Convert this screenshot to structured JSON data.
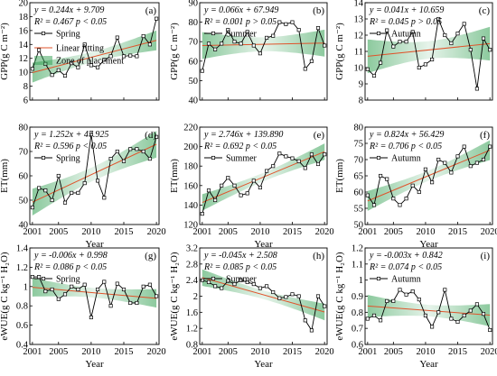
{
  "figure": {
    "x_label": "Year"
  },
  "chart_data": [
    {
      "type": "line",
      "panel": "(a)",
      "season": "Spring",
      "variable": "GPP",
      "x": [
        2001,
        2002,
        2003,
        2004,
        2005,
        2006,
        2007,
        2008,
        2009,
        2010,
        2011,
        2012,
        2013,
        2014,
        2015,
        2016,
        2017,
        2018,
        2019,
        2020
      ],
      "y": [
        10.5,
        13.2,
        11.2,
        9.6,
        10.3,
        9.5,
        11.3,
        10.7,
        14.0,
        11.0,
        10.7,
        11.8,
        12.3,
        15.0,
        12.3,
        12.4,
        12.3,
        15.2,
        14.0,
        17.7
      ],
      "fit": {
        "slope": 0.244,
        "intercept": 9.709
      },
      "equation": "y = 0.244x + 9.709",
      "r2_text": "R² = 0.467 p < 0.05",
      "ylabel": "GPP(g C m⁻²)",
      "ylim": [
        6,
        20
      ],
      "yticks": [
        6,
        8,
        10,
        12,
        14,
        16,
        18,
        20
      ],
      "legend": [
        "Spring",
        "Linear fitting",
        "Zone of placement"
      ],
      "show_x_ticklabels": false
    },
    {
      "type": "line",
      "panel": "(b)",
      "season": "Summer",
      "variable": "GPP",
      "x": [
        2001,
        2002,
        2003,
        2004,
        2005,
        2006,
        2007,
        2008,
        2009,
        2010,
        2011,
        2012,
        2013,
        2014,
        2015,
        2016,
        2017,
        2018,
        2019,
        2020
      ],
      "y": [
        55,
        69,
        66,
        69,
        76,
        70,
        69,
        75,
        68,
        64,
        72,
        73,
        80,
        79,
        80,
        76,
        56,
        60,
        77,
        68
      ],
      "fit": {
        "slope": 0.066,
        "intercept": 67.949
      },
      "equation": "y = 0.066x + 67.949",
      "r2_text": "R² = 0.001 p > 0.05",
      "ylabel": "GPP(g C m⁻²)",
      "ylim": [
        40,
        90
      ],
      "yticks": [
        40,
        50,
        60,
        70,
        80,
        90
      ],
      "legend": [
        "Summer"
      ],
      "show_x_ticklabels": false
    },
    {
      "type": "line",
      "panel": "(c)",
      "season": "Autumn",
      "variable": "GPP",
      "x": [
        2001,
        2002,
        2003,
        2004,
        2005,
        2006,
        2007,
        2008,
        2009,
        2010,
        2011,
        2012,
        2013,
        2014,
        2015,
        2016,
        2017,
        2018,
        2019,
        2020
      ],
      "y": [
        9.9,
        9.5,
        10.3,
        12.3,
        11.3,
        11.6,
        11.6,
        12.2,
        10.0,
        10.2,
        10.5,
        13.0,
        12.0,
        11.5,
        12.1,
        12.7,
        11.1,
        8.7,
        11.8,
        11.1
      ],
      "fit": {
        "slope": 0.041,
        "intercept": 10.659
      },
      "equation": "y = 0.041x + 10.659",
      "r2_text": "R² = 0.045 p > 0.05",
      "ylabel": "GPP(g C m⁻²)",
      "ylim": [
        8,
        14
      ],
      "yticks": [
        8,
        9,
        10,
        11,
        12,
        13,
        14
      ],
      "legend": [
        "Autumn"
      ],
      "show_x_ticklabels": false
    },
    {
      "type": "line",
      "panel": "(d)",
      "season": "Spring",
      "variable": "ET",
      "x": [
        2001,
        2002,
        2003,
        2004,
        2005,
        2006,
        2007,
        2008,
        2009,
        2010,
        2011,
        2012,
        2013,
        2014,
        2015,
        2016,
        2017,
        2018,
        2019,
        2020
      ],
      "y": [
        47,
        55,
        54,
        50,
        60,
        49,
        53,
        53,
        57,
        77,
        58,
        51,
        67,
        70,
        66,
        71,
        71,
        70,
        67,
        76
      ],
      "fit": {
        "slope": 1.252,
        "intercept": 47.925
      },
      "equation": "y = 1.252x + 47.925",
      "r2_text": "R² = 0.596 p < 0.05",
      "ylabel": "ET(mm)",
      "ylim": [
        40,
        80
      ],
      "yticks": [
        40,
        50,
        60,
        70,
        80
      ],
      "legend": [
        "Spring"
      ],
      "show_x_ticklabels": true
    },
    {
      "type": "line",
      "panel": "(e)",
      "season": "Summer",
      "variable": "ET",
      "x": [
        2001,
        2002,
        2003,
        2004,
        2005,
        2006,
        2007,
        2008,
        2009,
        2010,
        2011,
        2012,
        2013,
        2014,
        2015,
        2016,
        2017,
        2018,
        2019,
        2020
      ],
      "y": [
        131,
        155,
        145,
        160,
        168,
        160,
        150,
        152,
        165,
        158,
        175,
        180,
        193,
        190,
        188,
        185,
        178,
        192,
        182,
        192
      ],
      "fit": {
        "slope": 2.746,
        "intercept": 139.89
      },
      "equation": "y = 2.746x + 139.890",
      "r2_text": "R² = 0.692 p < 0.05",
      "ylabel": "ET(mm)",
      "ylim": [
        120,
        220
      ],
      "yticks": [
        120,
        140,
        160,
        180,
        200,
        220
      ],
      "legend": [
        "Summer"
      ],
      "show_x_ticklabels": true
    },
    {
      "type": "line",
      "panel": "(f)",
      "season": "Autumn",
      "variable": "ET",
      "x": [
        2001,
        2002,
        2003,
        2004,
        2005,
        2006,
        2007,
        2008,
        2009,
        2010,
        2011,
        2012,
        2013,
        2014,
        2015,
        2016,
        2017,
        2018,
        2019,
        2020
      ],
      "y": [
        59,
        56,
        65,
        64,
        58,
        56,
        58,
        62,
        60,
        67,
        63,
        70,
        69,
        66,
        71,
        74,
        68,
        69,
        70,
        74
      ],
      "fit": {
        "slope": 0.824,
        "intercept": 56.429
      },
      "equation": "y = 0.824x + 56.429",
      "r2_text": "R² = 0.706 p < 0.05",
      "ylabel": "ET(mm)",
      "ylim": [
        50,
        80
      ],
      "yticks": [
        50,
        55,
        60,
        65,
        70,
        75,
        80
      ],
      "legend": [
        "Autumn"
      ],
      "show_x_ticklabels": true
    },
    {
      "type": "line",
      "panel": "(g)",
      "season": "Spring",
      "variable": "eWUE",
      "x": [
        2001,
        2002,
        2003,
        2004,
        2005,
        2006,
        2007,
        2008,
        2009,
        2010,
        2011,
        2012,
        2013,
        2014,
        2015,
        2016,
        2017,
        2018,
        2019,
        2020
      ],
      "y": [
        1.1,
        1.1,
        0.95,
        0.97,
        0.87,
        0.92,
        1.0,
        0.97,
        1.02,
        0.68,
        0.97,
        1.05,
        0.8,
        1.03,
        0.97,
        0.83,
        0.83,
        1.0,
        1.02,
        0.9
      ],
      "fit": {
        "slope": -0.006,
        "intercept": 0.998
      },
      "equation": "y = -0.006x + 0.998",
      "r2_text": "R² = 0.086 p < 0.05",
      "ylabel": "eWUE(g C kg⁻¹ H₂O)",
      "ylim": [
        0.4,
        1.4
      ],
      "yticks": [
        0.4,
        0.6,
        0.8,
        1.0,
        1.2,
        1.4
      ],
      "legend": [
        "Spring"
      ],
      "show_x_ticklabels": true
    },
    {
      "type": "line",
      "panel": "(h)",
      "season": "Summer",
      "variable": "eWUE",
      "x": [
        2001,
        2002,
        2003,
        2004,
        2005,
        2006,
        2007,
        2008,
        2009,
        2010,
        2011,
        2012,
        2013,
        2014,
        2015,
        2016,
        2017,
        2018,
        2019,
        2020
      ],
      "y": [
        2.4,
        2.35,
        2.25,
        2.2,
        2.38,
        2.3,
        2.4,
        2.35,
        2.3,
        2.2,
        2.25,
        2.1,
        1.95,
        1.98,
        2.05,
        2.0,
        1.4,
        1.15,
        2.0,
        1.75
      ],
      "fit": {
        "slope": -0.045,
        "intercept": 2.508
      },
      "equation": "y = -0.045x + 2.508",
      "r2_text": "R² = 0.085 p < 0.05",
      "ylabel": "eWUE(g C kg⁻¹ H₂O)",
      "ylim": [
        0.8,
        3.2
      ],
      "yticks": [
        0.8,
        1.2,
        1.6,
        2.0,
        2.4,
        2.8,
        3.2
      ],
      "legend": [
        "Summer"
      ],
      "show_x_ticklabels": true
    },
    {
      "type": "line",
      "panel": "(i)",
      "season": "Autumn",
      "variable": "eWUE",
      "x": [
        2001,
        2002,
        2003,
        2004,
        2005,
        2006,
        2007,
        2008,
        2009,
        2010,
        2011,
        2012,
        2013,
        2014,
        2015,
        2016,
        2017,
        2018,
        2019,
        2020
      ],
      "y": [
        0.76,
        0.78,
        0.75,
        0.87,
        0.87,
        0.94,
        0.91,
        0.93,
        0.88,
        0.78,
        0.71,
        0.8,
        0.94,
        0.76,
        0.74,
        0.78,
        0.81,
        0.85,
        0.79,
        0.69
      ],
      "fit": {
        "slope": -0.003,
        "intercept": 0.842
      },
      "equation": "y = -0.003x + 0.842",
      "r2_text": "R² = 0.074 p < 0.05",
      "ylabel": "eWUE(g C kg⁻¹ H₂O)",
      "ylim": [
        0.6,
        1.2
      ],
      "yticks": [
        0.6,
        0.7,
        0.8,
        0.9,
        1.0,
        1.1,
        1.2
      ],
      "legend": [
        "Autumn"
      ],
      "show_x_ticklabels": true
    }
  ],
  "x_ticks": [
    2001,
    2005,
    2010,
    2015,
    2020
  ],
  "colors": {
    "line": "#000000",
    "marker_face": "#ffffff",
    "fit_line": "#e0532b",
    "band": "#2f9e4f"
  }
}
